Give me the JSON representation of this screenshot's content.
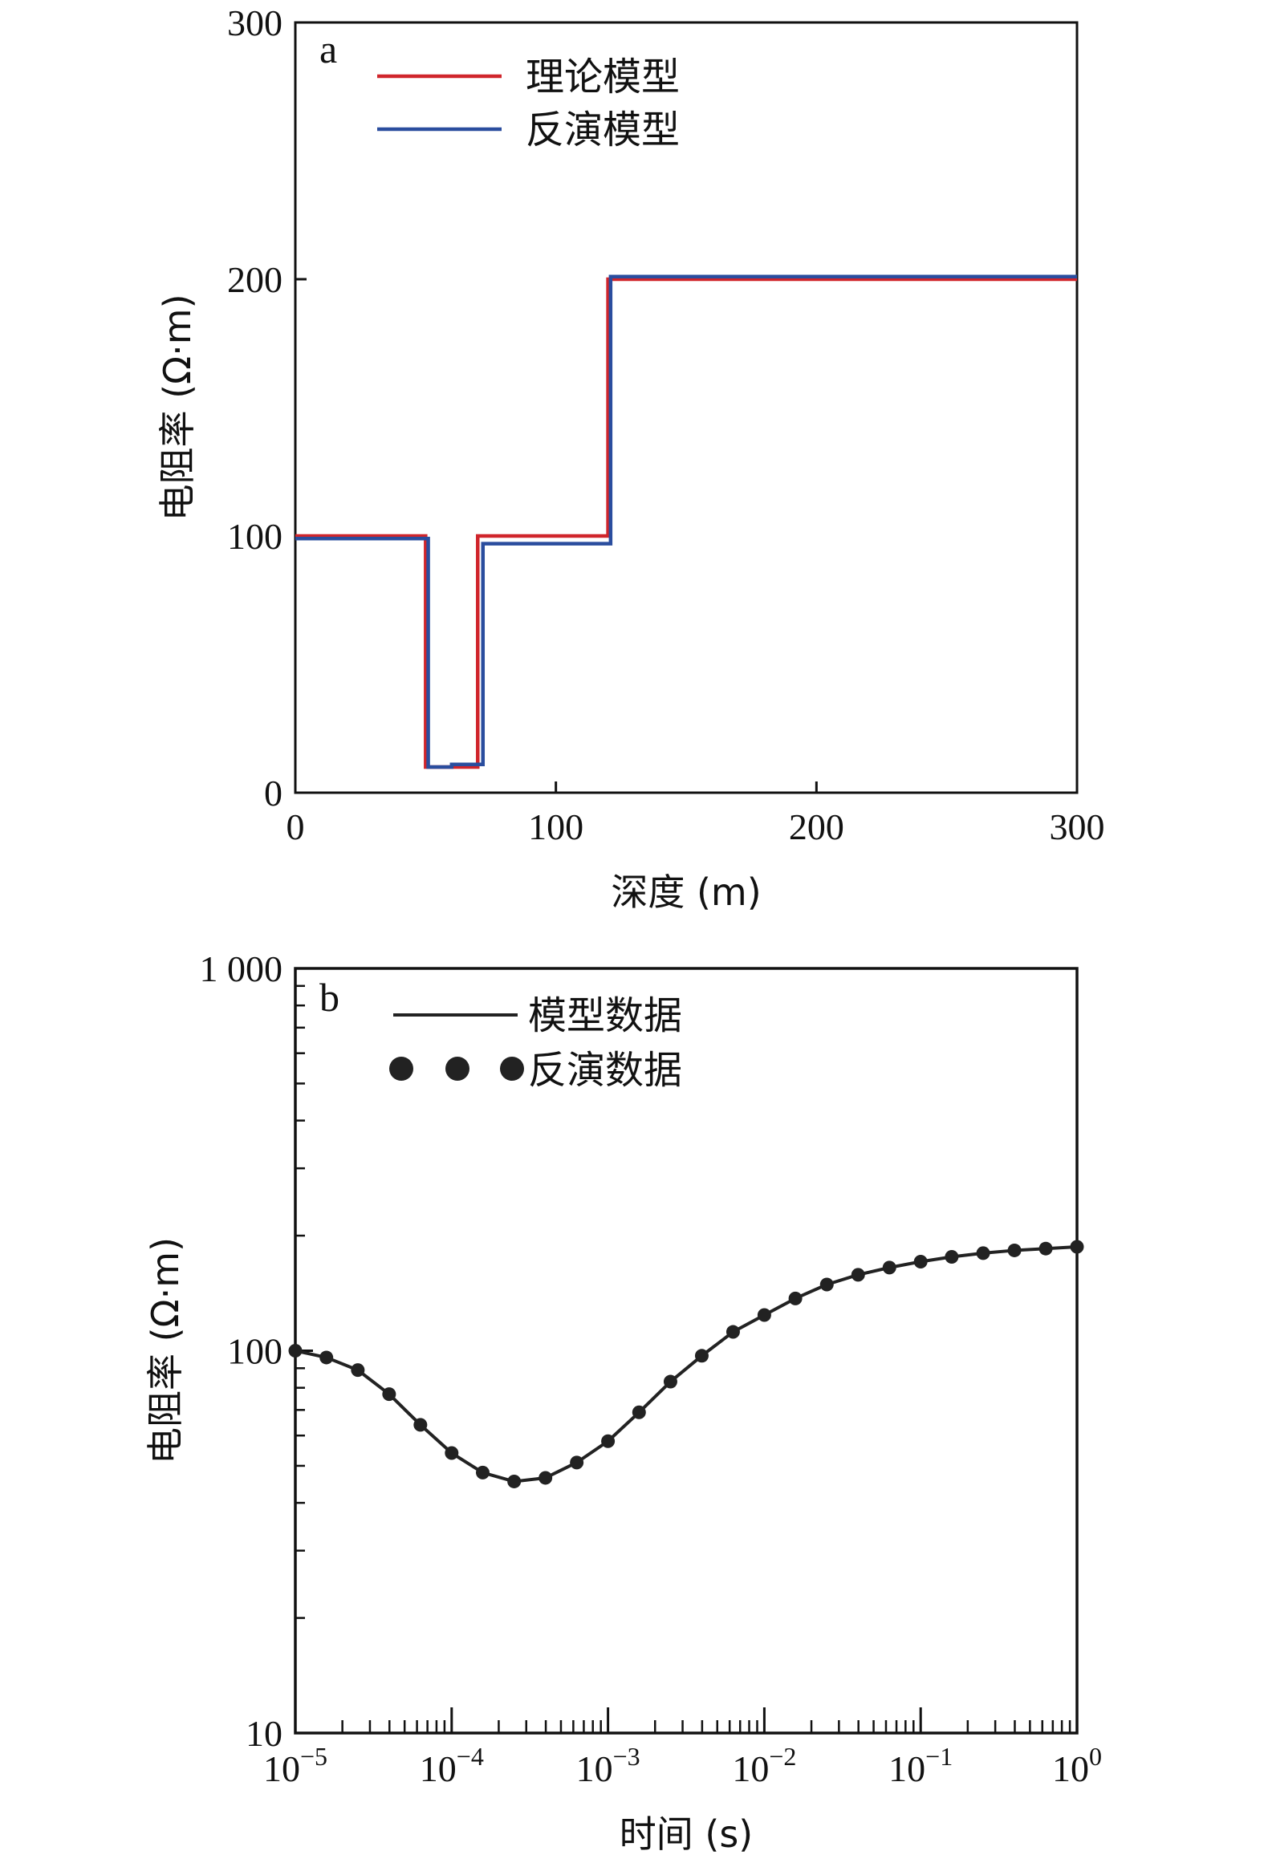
{
  "chart_data": [
    {
      "id": "a",
      "type": "line",
      "panel_label": "a",
      "xlabel": "深度 (m)",
      "ylabel": "电阻率 (Ω·m)",
      "xlim": [
        0,
        300
      ],
      "ylim": [
        0,
        300
      ],
      "xticks": [
        0,
        100,
        200,
        300
      ],
      "xtick_labels": [
        "0",
        "100",
        "200",
        "300"
      ],
      "yticks": [
        0,
        100,
        200,
        300
      ],
      "ytick_labels": [
        "0",
        "100",
        "200",
        "300"
      ],
      "legend_position": "top-left",
      "series": [
        {
          "name": "理论模型",
          "color": "#d0252b",
          "style": "step",
          "x": [
            0,
            50,
            50,
            70,
            70,
            120,
            120,
            300
          ],
          "y": [
            100,
            100,
            10,
            10,
            100,
            100,
            200,
            200
          ]
        },
        {
          "name": "反演模型",
          "color": "#2a4d9e",
          "style": "step",
          "x": [
            0,
            51,
            51,
            60,
            60,
            72,
            72,
            121,
            121,
            300
          ],
          "y": [
            99,
            99,
            10,
            10,
            11,
            11,
            97,
            97,
            201,
            201
          ]
        }
      ]
    },
    {
      "id": "b",
      "type": "line",
      "panel_label": "b",
      "xlabel": "时间 (s)",
      "ylabel": "电阻率 (Ω·m)",
      "xscale": "log",
      "yscale": "log",
      "xlim": [
        1e-05,
        1
      ],
      "ylim": [
        10,
        1000
      ],
      "xtick_labels": [
        {
          "base": "10",
          "exp": "−5"
        },
        {
          "base": "10",
          "exp": "−4"
        },
        {
          "base": "10",
          "exp": "−3"
        },
        {
          "base": "10",
          "exp": "−2"
        },
        {
          "base": "10",
          "exp": "−1"
        },
        {
          "base": "10",
          "exp": "0"
        }
      ],
      "ytick_labels": [
        "10",
        "100",
        "1 000"
      ],
      "legend_position": "top-left",
      "series": [
        {
          "name": "模型数据",
          "color": "#222222",
          "style": "line",
          "x": [
            1e-05,
            1.58e-05,
            2.51e-05,
            3.98e-05,
            6.31e-05,
            0.0001,
            0.000158,
            0.000251,
            0.000398,
            0.000631,
            0.001,
            0.00158,
            0.00251,
            0.00398,
            0.00631,
            0.01,
            0.0158,
            0.0251,
            0.0398,
            0.0631,
            0.1,
            0.158,
            0.251,
            0.398,
            0.631,
            1
          ],
          "y": [
            100,
            96,
            89,
            77,
            64,
            54,
            48,
            45.5,
            46.5,
            51,
            58,
            69,
            83,
            97,
            112,
            124,
            137,
            149,
            158,
            165,
            171,
            176,
            180,
            183,
            185,
            187
          ]
        },
        {
          "name": "反演数据",
          "color": "#222222",
          "style": "markers",
          "x": [
            1e-05,
            1.58e-05,
            2.51e-05,
            3.98e-05,
            6.31e-05,
            0.0001,
            0.000158,
            0.000251,
            0.000398,
            0.000631,
            0.001,
            0.00158,
            0.00251,
            0.00398,
            0.00631,
            0.01,
            0.0158,
            0.0251,
            0.0398,
            0.0631,
            0.1,
            0.158,
            0.251,
            0.398,
            0.631,
            1
          ],
          "y": [
            100,
            96,
            89,
            77,
            64,
            54,
            48,
            45.5,
            46.5,
            51,
            58,
            69,
            83,
            97,
            112,
            124,
            137,
            149,
            158,
            165,
            171,
            176,
            180,
            183,
            185,
            187
          ]
        }
      ]
    }
  ]
}
